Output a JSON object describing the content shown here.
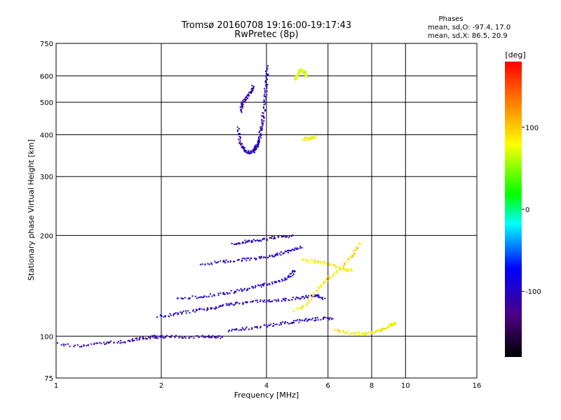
{
  "chart_data": {
    "type": "scatter",
    "title": "Tromsø 20160708 19:16:00-19:17:43",
    "subtitle": "RwPretec (8p)",
    "stats": {
      "heading": "Phases",
      "line_o": "mean, sd,O: -97.4, 17.0",
      "line_x": "mean, sd,X: 86.5, 20.9"
    },
    "xlabel": "Frequency [MHz]",
    "ylabel": "Stationary phase Virtual Height [km]",
    "x_scale": "log",
    "y_scale": "log",
    "xlim": [
      1,
      16
    ],
    "ylim": [
      75,
      750
    ],
    "x_ticks": [
      1,
      2,
      4,
      6,
      8,
      10,
      16
    ],
    "x_tick_labels": [
      "1",
      "2",
      "4",
      "6",
      "8",
      "10",
      "16"
    ],
    "y_ticks": [
      75,
      100,
      200,
      300,
      400,
      500,
      600,
      750
    ],
    "y_tick_labels": [
      "75",
      "100",
      "200",
      "300",
      "400",
      "500",
      "600",
      "750"
    ],
    "grid": true,
    "colorbar": {
      "label": "[deg]",
      "ticks": [
        100,
        0,
        -100
      ],
      "tick_labels": [
        "100",
        "0",
        "-100"
      ],
      "range": [
        -180,
        180
      ],
      "colors": [
        "#000000",
        "#4b0082",
        "#0000ff",
        "#00ffff",
        "#00ff00",
        "#ffff00",
        "#ff8000",
        "#ff0000"
      ]
    },
    "traces": [
      {
        "freq": [
          1.0,
          1.2,
          1.4,
          1.6,
          1.75,
          1.9,
          2.0,
          2.3,
          2.7,
          3.0
        ],
        "height": [
          95,
          94,
          96,
          97,
          99,
          100,
          100,
          100,
          100,
          100
        ],
        "phase": -110
      },
      {
        "freq": [
          1.95,
          2.2,
          2.5,
          2.8,
          3.1,
          3.5,
          4.0,
          4.5,
          5.0,
          5.5,
          5.8
        ],
        "height": [
          115,
          117,
          120,
          122,
          125,
          127,
          128,
          129,
          131,
          133,
          130
        ],
        "phase": -100
      },
      {
        "freq": [
          3.1,
          3.5,
          4.0,
          4.5,
          5.0,
          5.5,
          6.2
        ],
        "height": [
          104,
          106,
          108,
          110,
          112,
          113,
          114
        ],
        "phase": -105
      },
      {
        "freq": [
          2.2,
          2.6,
          3.0,
          3.4,
          3.8,
          4.2,
          4.6,
          4.8
        ],
        "height": [
          130,
          132,
          135,
          138,
          142,
          145,
          150,
          158
        ],
        "phase": -95
      },
      {
        "freq": [
          2.6,
          3.0,
          3.4,
          3.8,
          4.2,
          4.6,
          5.0
        ],
        "height": [
          165,
          168,
          170,
          172,
          175,
          180,
          185
        ],
        "phase": -100
      },
      {
        "freq": [
          3.2,
          3.5,
          3.8,
          4.2,
          4.7
        ],
        "height": [
          190,
          193,
          195,
          198,
          200
        ],
        "phase": -110
      },
      {
        "freq": [
          3.3,
          3.35,
          3.45,
          3.55,
          3.65,
          3.7,
          3.75,
          3.8,
          3.85,
          3.9,
          3.95,
          3.98,
          4.0
        ],
        "height": [
          420,
          380,
          360,
          355,
          358,
          365,
          375,
          390,
          420,
          460,
          520,
          580,
          640
        ],
        "phase": -105
      },
      {
        "freq": [
          3.35,
          3.4,
          3.5,
          3.6,
          3.65
        ],
        "height": [
          470,
          500,
          520,
          540,
          560
        ],
        "phase": -110
      },
      {
        "freq": [
          4.8,
          5.2,
          5.6,
          6.0,
          6.5,
          7.0,
          7.4
        ],
        "height": [
          120,
          125,
          140,
          150,
          160,
          175,
          190
        ],
        "phase": 90
      },
      {
        "freq": [
          5.0,
          5.5,
          6.0,
          6.6,
          7.0
        ],
        "height": [
          170,
          168,
          165,
          160,
          158
        ],
        "phase": 85
      },
      {
        "freq": [
          6.2,
          6.8,
          7.5,
          8.0,
          8.5,
          9.0,
          9.3
        ],
        "height": [
          105,
          103,
          102,
          103,
          105,
          108,
          110
        ],
        "phase": 80
      },
      {
        "freq": [
          4.8,
          4.9,
          5.0,
          5.1,
          5.2
        ],
        "height": [
          590,
          610,
          630,
          620,
          600
        ],
        "phase": 70
      },
      {
        "freq": [
          5.1,
          5.3,
          5.5
        ],
        "height": [
          390,
          392,
          395
        ],
        "phase": 80
      }
    ]
  }
}
